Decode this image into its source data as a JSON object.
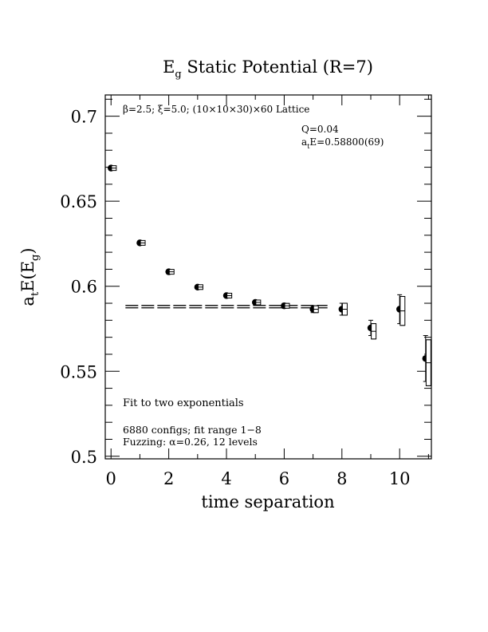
{
  "chart_data": {
    "type": "scatter",
    "title_parts": {
      "main": "E",
      "sub": "g",
      "rest": " Static Potential (R=7)"
    },
    "xlabel": "time separation",
    "ylabel_parts": {
      "a": "a",
      "a_sub": "t",
      "mid": "E(E",
      "g_sub": "g",
      "end": ")"
    },
    "xlim": [
      -0.2,
      11.1
    ],
    "ylim": [
      0.4985,
      0.7125
    ],
    "xticks": [
      0,
      2,
      4,
      6,
      8,
      10
    ],
    "xtick_labels": [
      "0",
      "2",
      "4",
      "6",
      "8",
      "10"
    ],
    "yticks": [
      0.5,
      0.55,
      0.6,
      0.65,
      0.7
    ],
    "ytick_labels": [
      "0.5",
      "0.55",
      "0.6",
      "0.65",
      "0.7"
    ],
    "annotations": {
      "lattice": "β=2.5; ξ=5.0; (10×10×30)×60 Lattice",
      "q": "Q=0.04",
      "energy_parts": {
        "a": "a",
        "a_sub": "t",
        "rest": "E=0.58800(69)"
      },
      "fit": "Fit to two exponentials",
      "configs": "6880 configs; fit range 1−8",
      "fuzzing": "Fuzzing: α=0.26, 12 levels"
    },
    "fit_line": {
      "value": 0.588,
      "error": 0.0007,
      "x_start": 0.5,
      "x_end": 7.5
    },
    "series": [
      {
        "marker": "filled-circle",
        "x": [
          0,
          1,
          2,
          3,
          4,
          5,
          6,
          7,
          8,
          9,
          10,
          10.9
        ],
        "y": [
          0.6695,
          0.6255,
          0.6085,
          0.5995,
          0.5945,
          0.5905,
          0.5885,
          0.5865,
          0.5865,
          0.5755,
          0.5865,
          0.5575
        ],
        "err": [
          0.0006,
          0.0008,
          0.0008,
          0.0009,
          0.001,
          0.0012,
          0.0014,
          0.002,
          0.0035,
          0.0045,
          0.0085,
          0.0135
        ]
      },
      {
        "marker": "open-square",
        "x": [
          0.1,
          1.1,
          2.1,
          3.1,
          4.1,
          5.1,
          6.1,
          7.1,
          8.1,
          9.1,
          10.1,
          11.0
        ],
        "y": [
          0.6695,
          0.6255,
          0.6085,
          0.5995,
          0.5945,
          0.5905,
          0.5885,
          0.5865,
          0.5865,
          0.5735,
          0.5855,
          0.555
        ],
        "err": [
          0.0006,
          0.0008,
          0.0008,
          0.0009,
          0.001,
          0.0012,
          0.0014,
          0.002,
          0.0035,
          0.0045,
          0.0085,
          0.0135
        ]
      }
    ]
  }
}
